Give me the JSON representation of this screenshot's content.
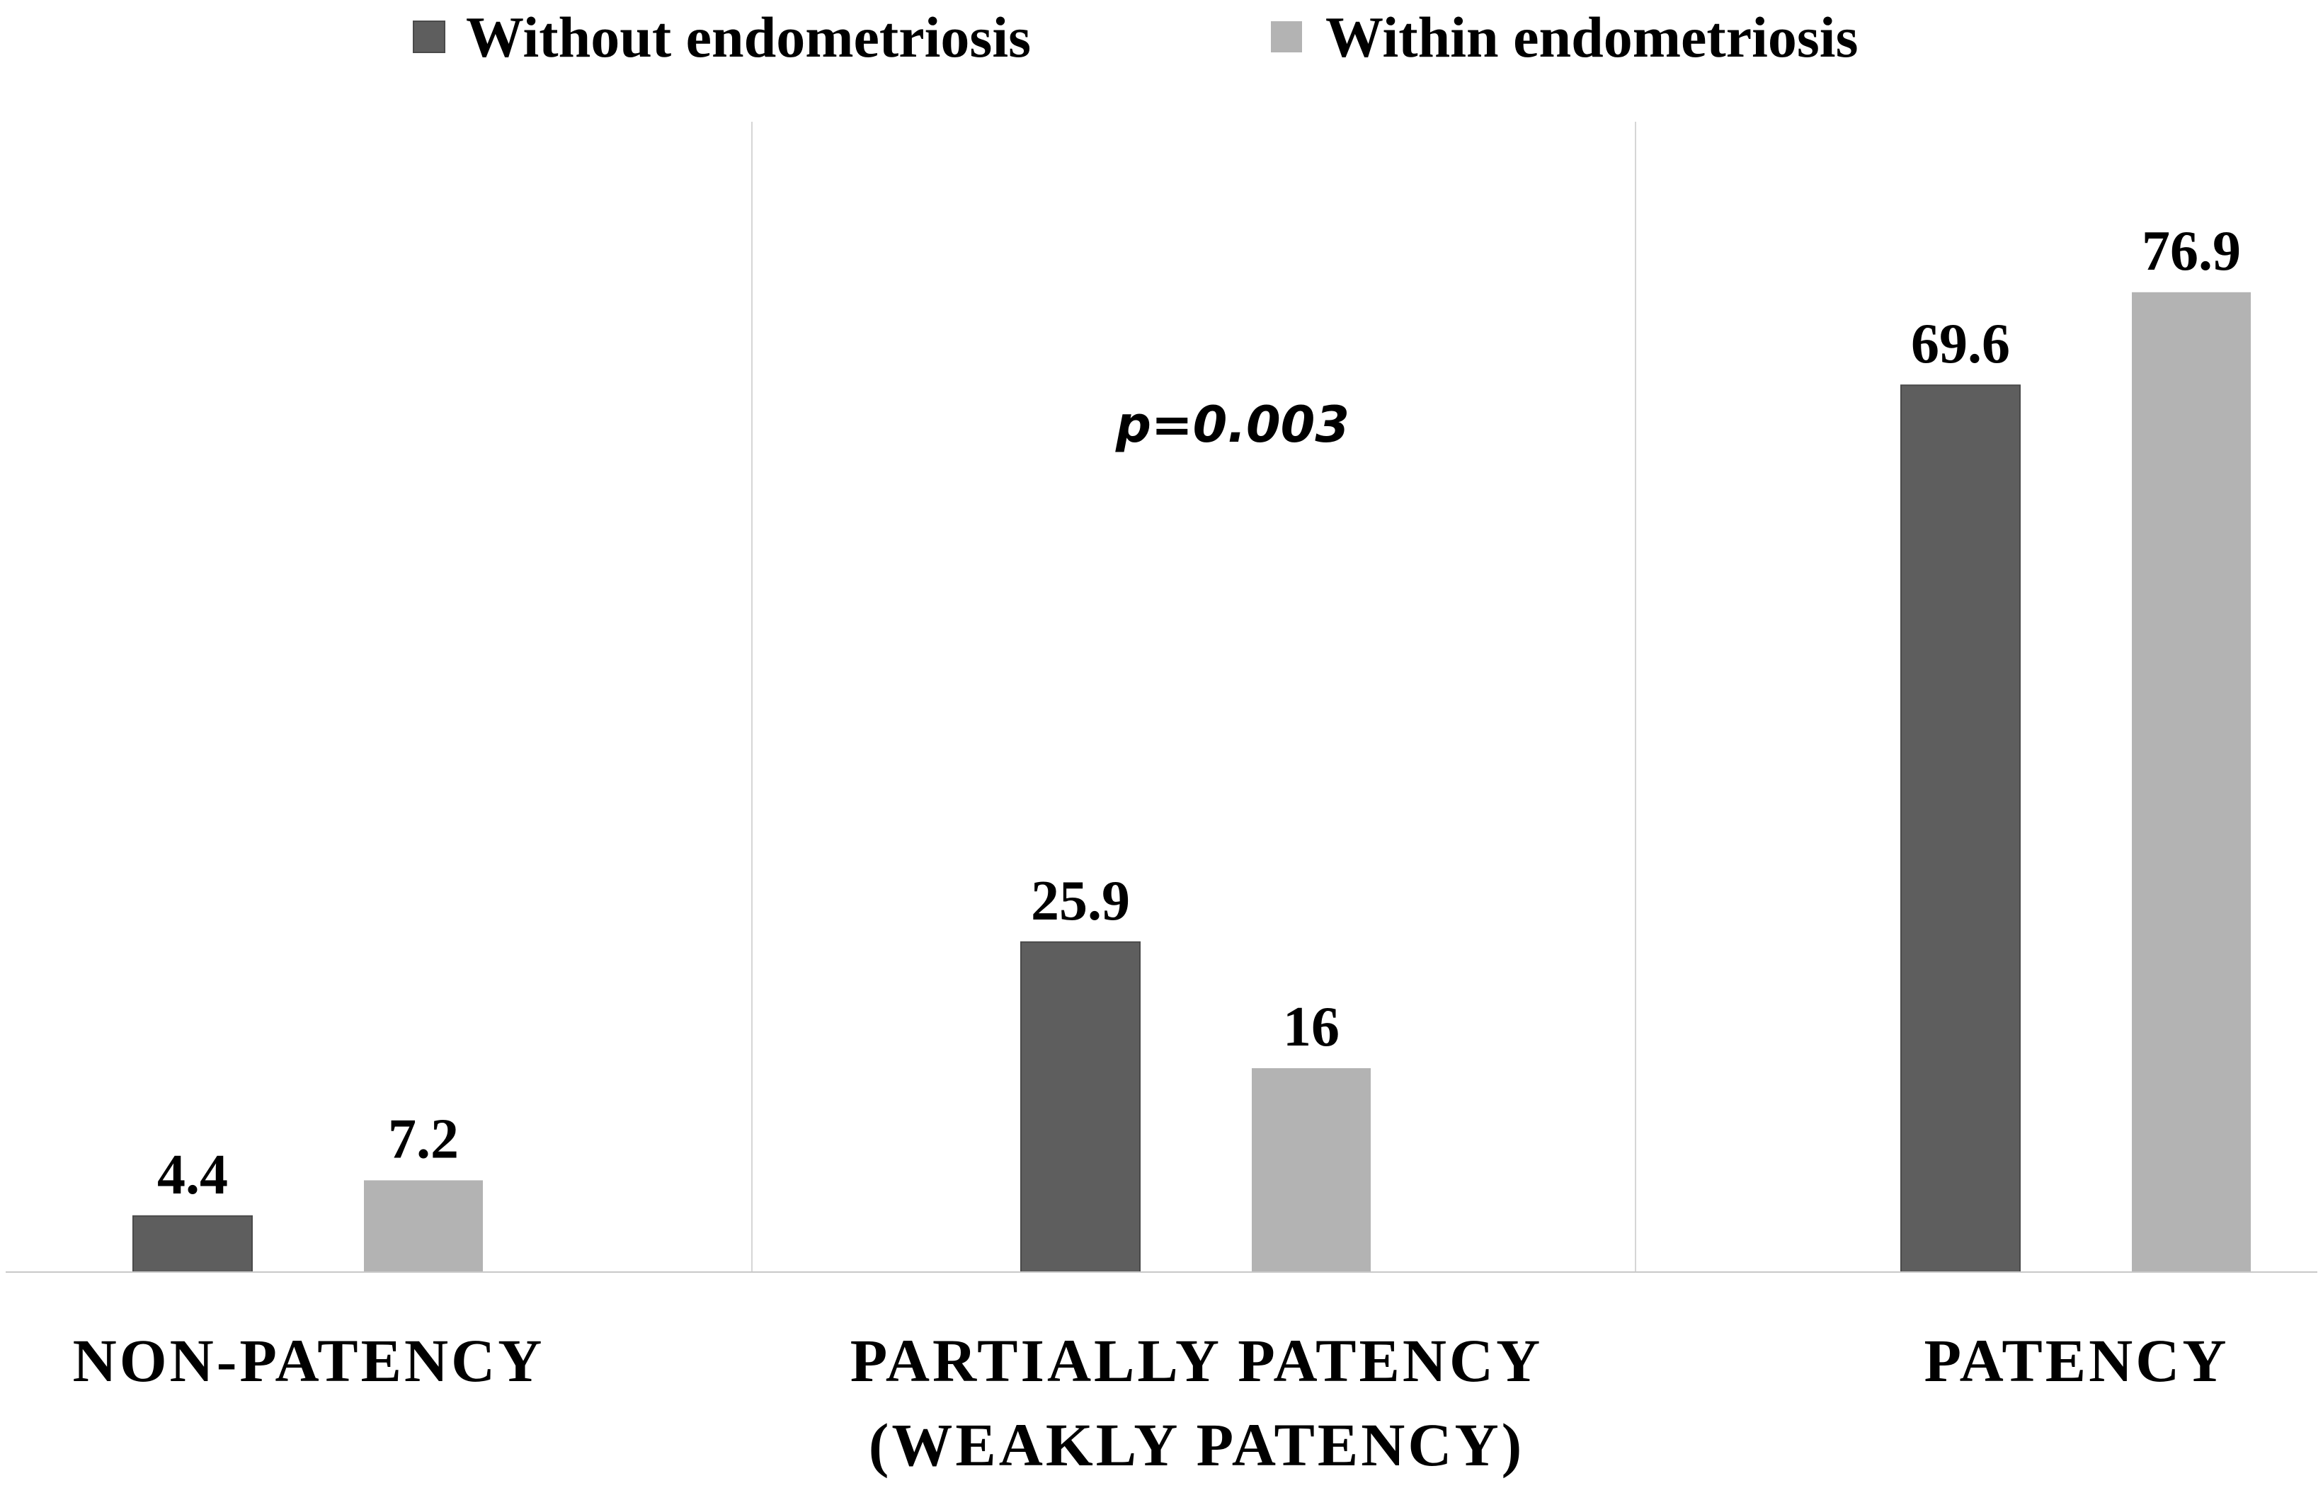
{
  "chart_data": {
    "type": "bar",
    "categories": [
      [
        "NON-PATENCY"
      ],
      [
        "PARTIALLY PATENCY",
        "(WEAKLY PATENCY)"
      ],
      [
        "PATENCY"
      ]
    ],
    "series": [
      {
        "name": "Without endometriosis",
        "values": [
          4.4,
          25.9,
          69.6
        ],
        "labels": [
          "4.4",
          "25.9",
          "69.6"
        ],
        "color": "#5e5e5e"
      },
      {
        "name": "Within endometriosis",
        "values": [
          7.2,
          16,
          76.9
        ],
        "labels": [
          "7.2",
          "16",
          "76.9"
        ],
        "color": "#b3b3b3"
      }
    ],
    "annotation": "p=0.003",
    "ylim": [
      0,
      90
    ],
    "gridlines": "vertical category separators",
    "legend_position": "top-center",
    "title": "",
    "xlabel": "",
    "ylabel": ""
  }
}
